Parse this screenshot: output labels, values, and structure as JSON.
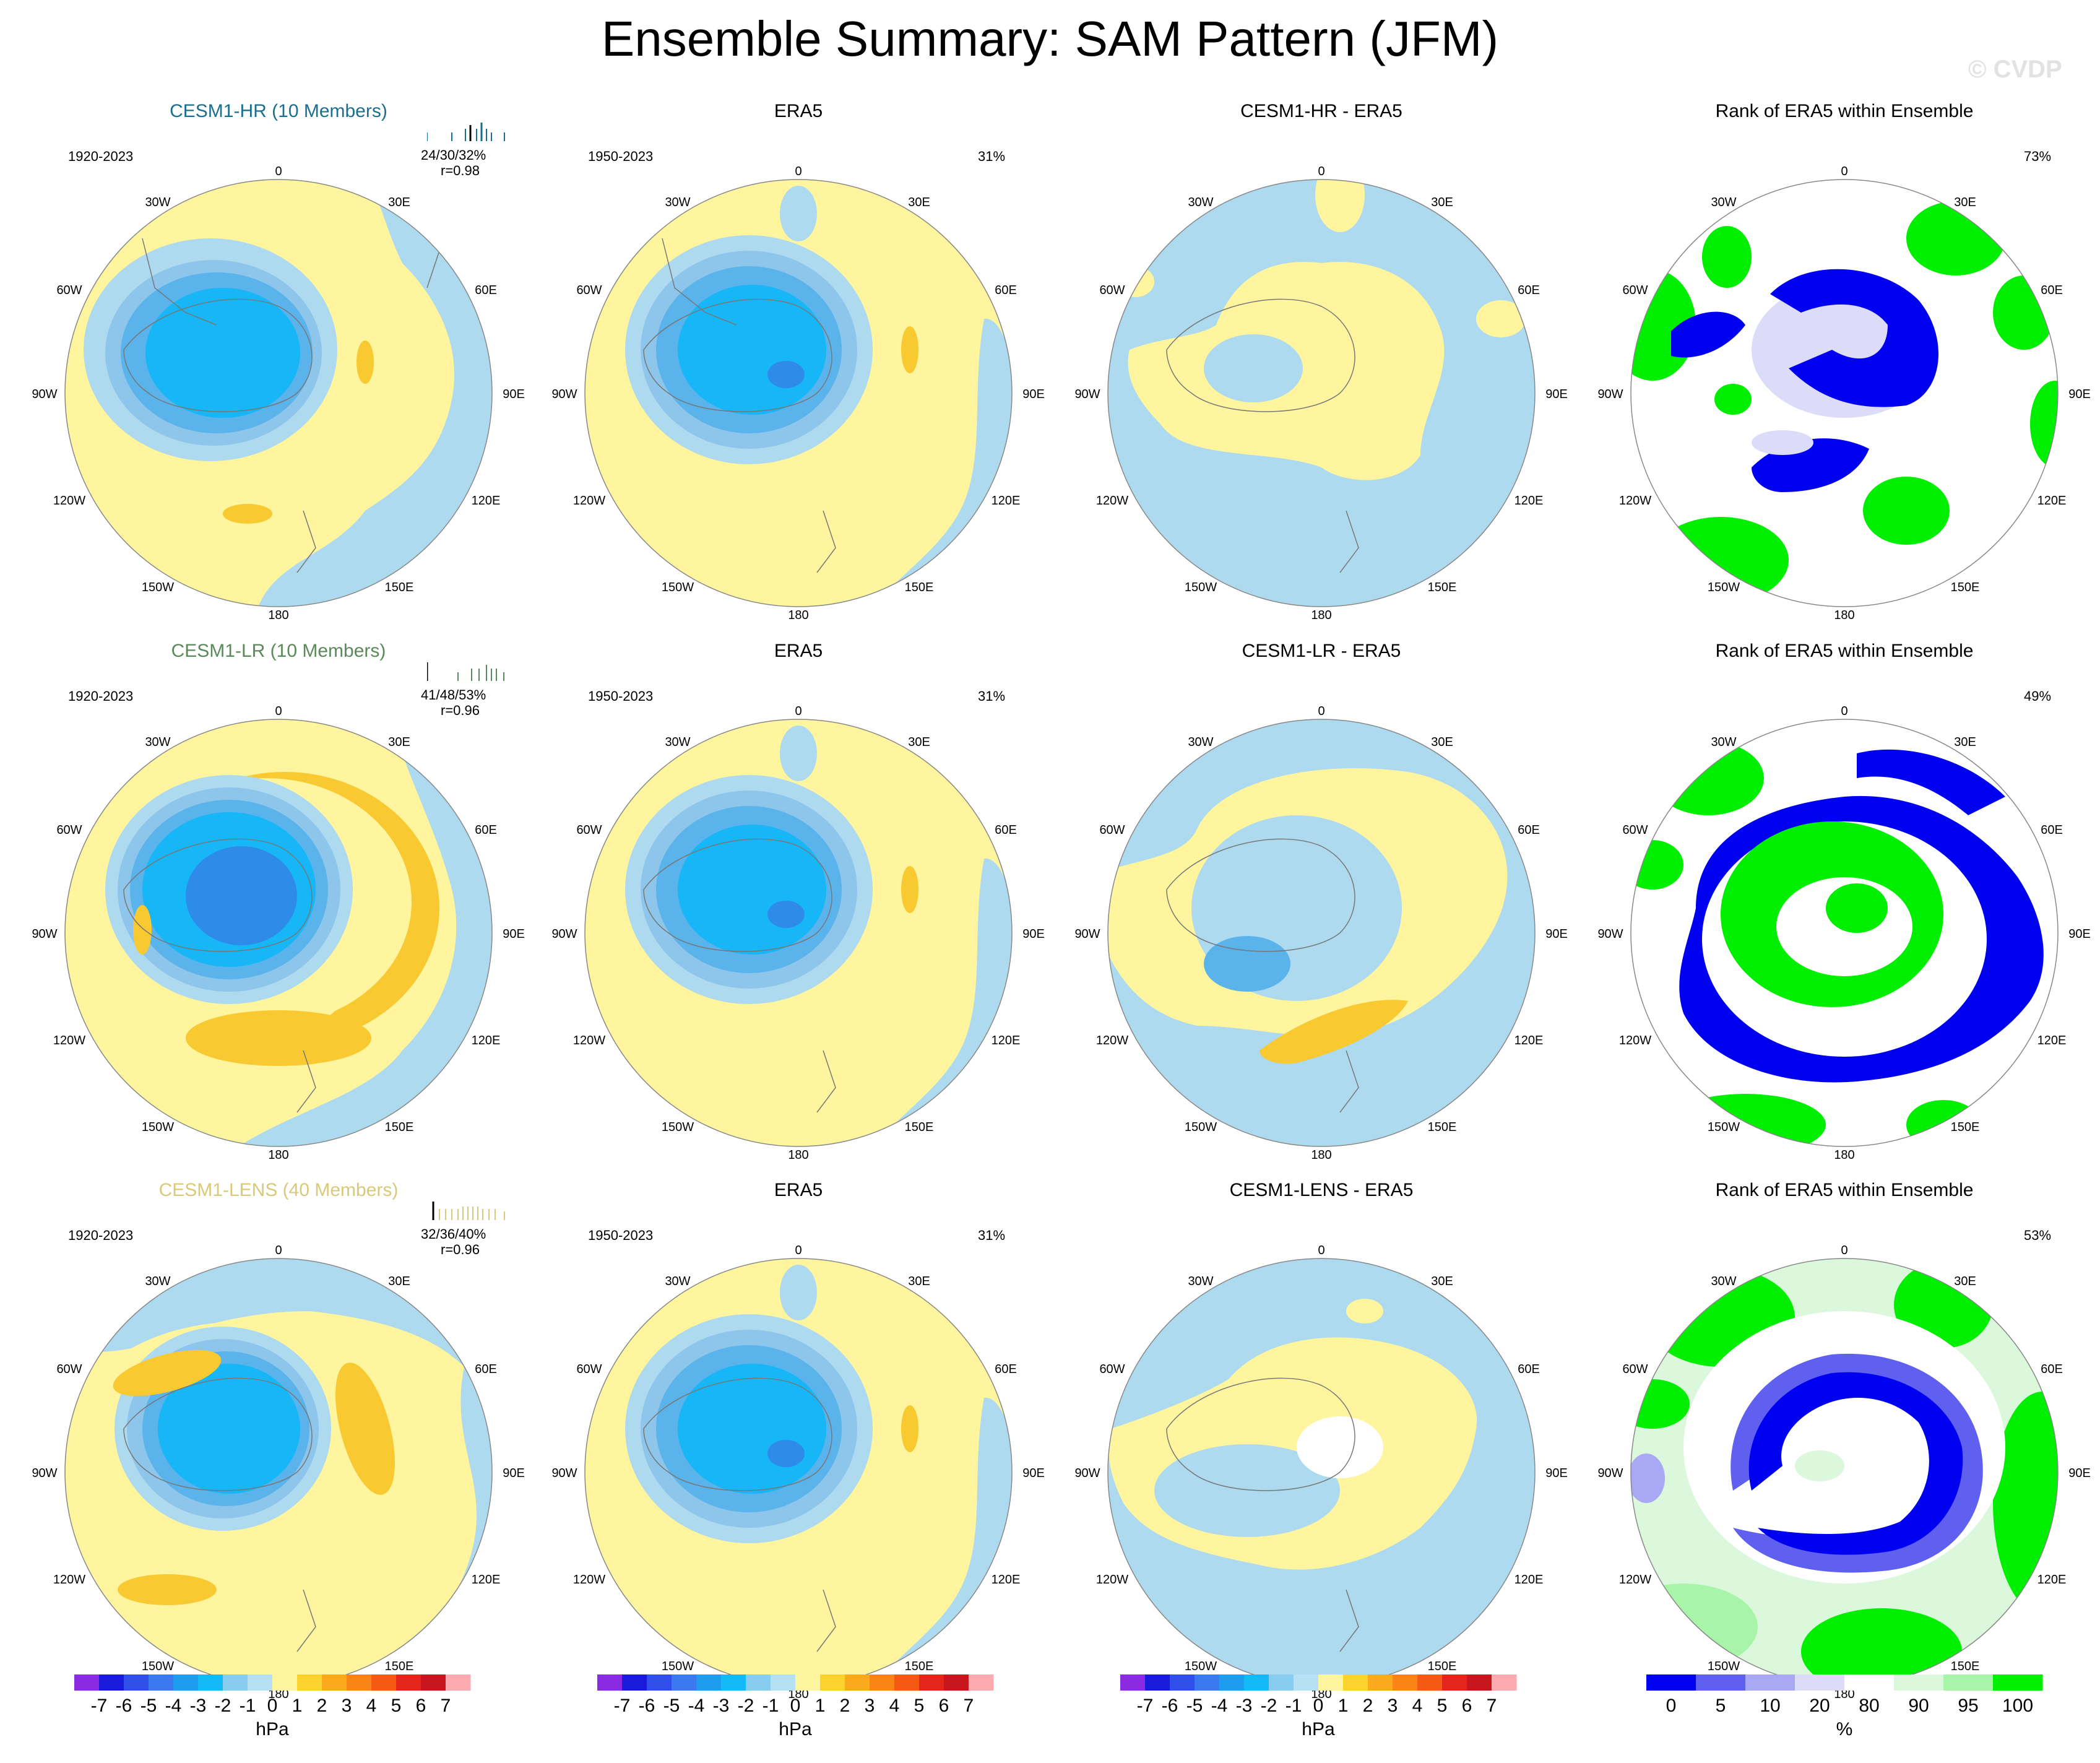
{
  "figure": {
    "title": "Ensemble Summary: SAM Pattern (JFM)",
    "watermark": "© CVDP",
    "lon_labels": [
      "0",
      "30E",
      "60E",
      "90E",
      "120E",
      "150E",
      "180",
      "150W",
      "120W",
      "90W",
      "60W",
      "30W"
    ]
  },
  "colors": {
    "ocean_pos": "#fef59e",
    "ocean_neg": "#aedaf0",
    "orange": "#f8c930",
    "deep_orange": "#f4a019",
    "blue1": "#8dc6ea",
    "blue2": "#5ab3ea",
    "blue3": "#16b6f7",
    "blue4": "#2e8be8",
    "rank_blue": "#0000f0",
    "rank_lavender": "#dcdcf8",
    "rank_green": "#00ee00",
    "rank_lightgreen": "#b8f5b8",
    "cesm_hr": "#1a6f8f",
    "cesm_lr": "#5a8a5a",
    "cesm_lens": "#d9c97a"
  },
  "rows": [
    {
      "ensemble": {
        "title": "CESM1-HR (10 Members)",
        "period": "1920-2023",
        "stats": "24/30/32%",
        "r": "r=0.98"
      },
      "obs": {
        "title": "ERA5",
        "period": "1950-2023",
        "pct": "31%"
      },
      "diff": {
        "title": "CESM1-HR - ERA5"
      },
      "rank": {
        "title": "Rank of ERA5 within Ensemble",
        "pct": "73%"
      }
    },
    {
      "ensemble": {
        "title": "CESM1-LR (10 Members)",
        "period": "1920-2023",
        "stats": "41/48/53%",
        "r": "r=0.96"
      },
      "obs": {
        "title": "ERA5",
        "period": "1950-2023",
        "pct": "31%"
      },
      "diff": {
        "title": "CESM1-LR - ERA5"
      },
      "rank": {
        "title": "Rank of ERA5 within Ensemble",
        "pct": "49%"
      }
    },
    {
      "ensemble": {
        "title": "CESM1-LENS (40 Members)",
        "period": "1920-2023",
        "stats": "32/36/40%",
        "r": "r=0.96"
      },
      "obs": {
        "title": "ERA5",
        "period": "1950-2023",
        "pct": "31%"
      },
      "diff": {
        "title": "CESM1-LENS - ERA5"
      },
      "rank": {
        "title": "Rank of ERA5 within Ensemble",
        "pct": "53%"
      }
    }
  ],
  "colorbars": {
    "hpa": {
      "unit": "hPa",
      "labels": [
        "-7",
        "-6",
        "-5",
        "-4",
        "-3",
        "-2",
        "-1",
        "0",
        "1",
        "2",
        "3",
        "4",
        "5",
        "6",
        "7"
      ],
      "colors": [
        "#8a2be2",
        "#1a1adb",
        "#2f4fe8",
        "#3c78f0",
        "#1e9cf0",
        "#14b9f7",
        "#86cdf0",
        "#b6e0f4",
        "#fff59e",
        "#fcd22e",
        "#fbaa1e",
        "#fa8418",
        "#f55a14",
        "#e4261a",
        "#c8161e",
        "#fbaab0"
      ]
    },
    "pct": {
      "unit": "%",
      "labels": [
        "0",
        "5",
        "10",
        "20",
        "80",
        "90",
        "95",
        "100"
      ],
      "colors": [
        "#0000f0",
        "#6060f0",
        "#a8a8f4",
        "#dcdcf8",
        "#ffffff",
        "#dcf8dc",
        "#a8f4a8",
        "#00ee00"
      ]
    }
  }
}
